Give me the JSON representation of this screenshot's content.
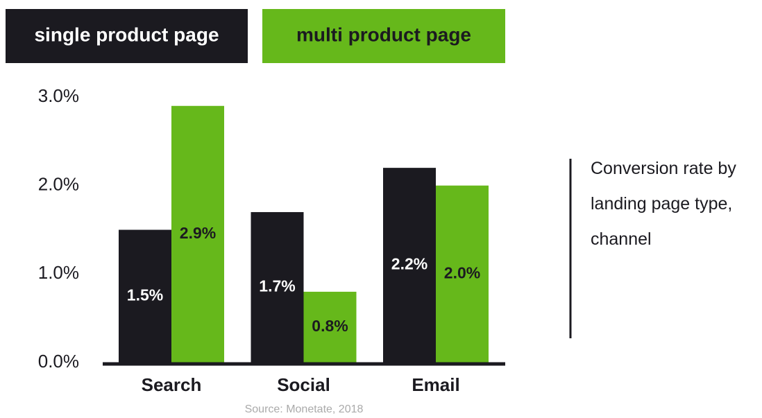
{
  "chart_data": {
    "type": "bar",
    "title": "Conversion rate by landing page type, channel",
    "categories": [
      "Search",
      "Social",
      "Email"
    ],
    "series": [
      {
        "name": "single product page",
        "color": "#1b1a20",
        "values": [
          1.5,
          1.7,
          2.2
        ],
        "value_labels": [
          "1.5%",
          "1.7%",
          "2.2%"
        ]
      },
      {
        "name": "multi product page",
        "color": "#66b81b",
        "values": [
          2.9,
          0.8,
          2.0
        ],
        "value_labels": [
          "2.9%",
          "0.8%",
          "2.0%"
        ]
      }
    ],
    "ylim": [
      0,
      3
    ],
    "yticks": [
      {
        "value": 0,
        "label": "0.0%"
      },
      {
        "value": 1,
        "label": "1.0%"
      },
      {
        "value": 2,
        "label": "2.0%"
      },
      {
        "value": 3,
        "label": "3.0%"
      }
    ],
    "source": "Source: Monetate, 2018"
  }
}
